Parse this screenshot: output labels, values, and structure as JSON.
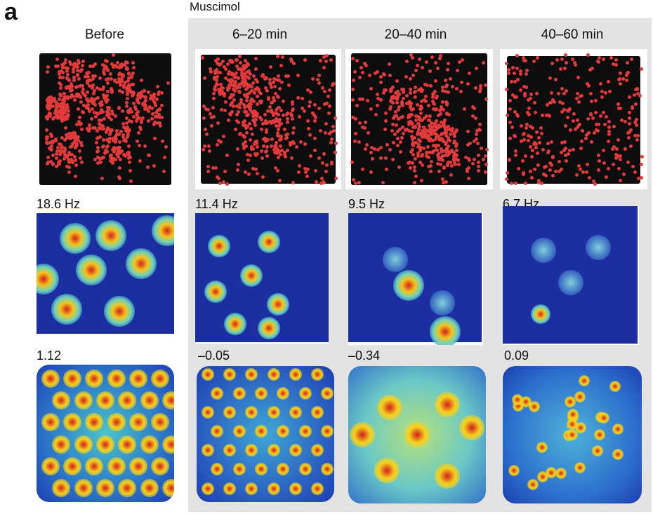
{
  "figure": {
    "panel_label": "a",
    "group_label": "Muscimol",
    "columns": [
      {
        "header": "Before",
        "peak_rate": "18.6 Hz",
        "gridness": "1.12"
      },
      {
        "header": "6–20 min",
        "peak_rate": "11.4 Hz",
        "gridness": "–0.05"
      },
      {
        "header": "20–40 min",
        "peak_rate": "9.5 Hz",
        "gridness": "–0.34"
      },
      {
        "header": "40–60 min",
        "peak_rate": "6.7 Hz",
        "gridness": "0.09"
      }
    ],
    "colors": {
      "trajectory": "#0d0d0d",
      "spikes": "#e23a3a",
      "map_low": "#1c2fa0",
      "map_high": "#c8102e",
      "muscimol_background": "#e3e3e3"
    }
  }
}
